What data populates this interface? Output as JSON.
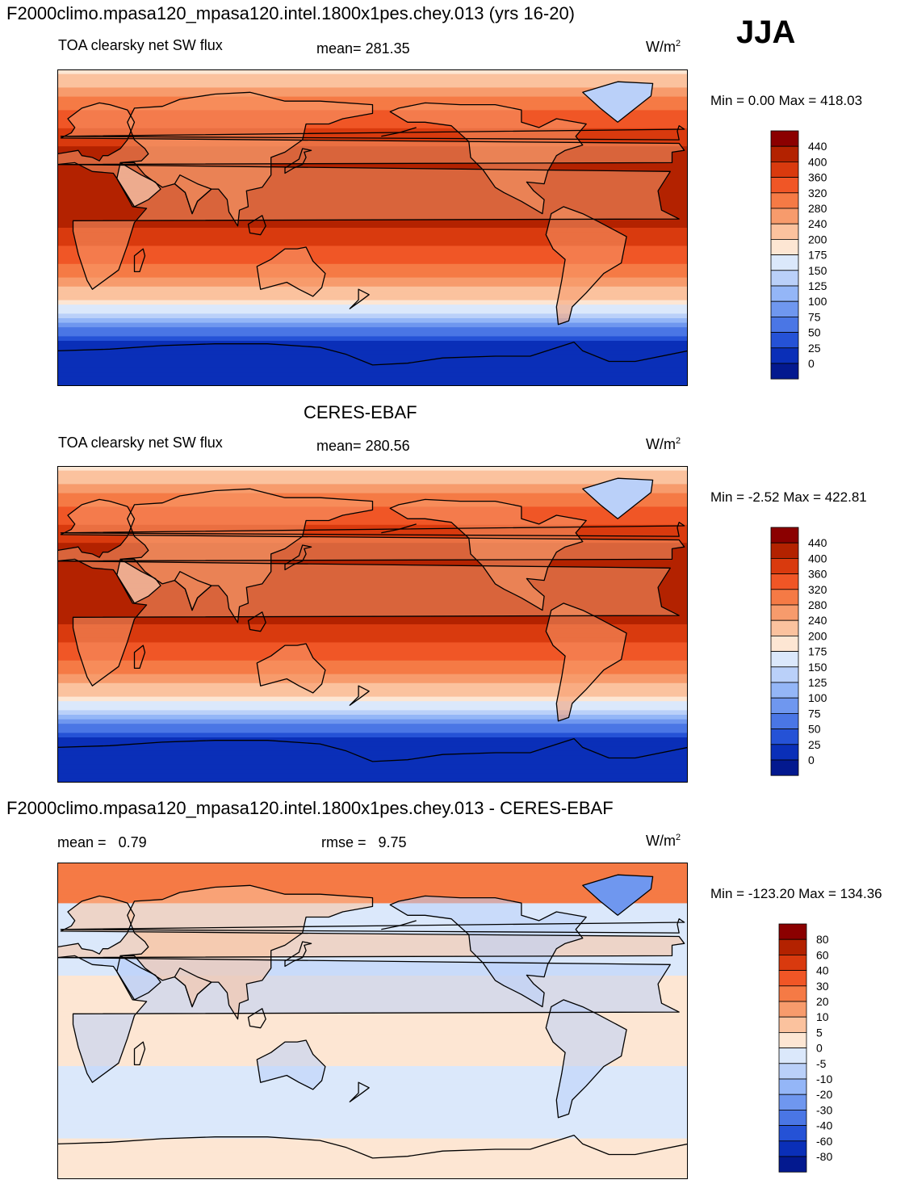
{
  "run_title": "F2000climo.mpasa120_mpasa120.intel.1800x1pes.chey.013 (yrs 16-20)",
  "season": "JJA",
  "panels": [
    {
      "id": "model",
      "heading": "",
      "variable": "TOA clearsky net SW flux",
      "stat_label": "mean=",
      "stat_value": "281.35",
      "stat2_label": "",
      "stat2_value": "",
      "units": "W/m",
      "units_sup": "2",
      "minmax": "Min =   0.00 Max = 418.03",
      "colorbar_labels": [
        "440",
        "400",
        "360",
        "320",
        "280",
        "240",
        "200",
        "175",
        "150",
        "125",
        "100",
        "75",
        "50",
        "25",
        "0"
      ],
      "colorbar_colors": [
        "#8b0000",
        "#b32200",
        "#d93a0e",
        "#f05626",
        "#f57a45",
        "#f79b6c",
        "#fbc29e",
        "#fde6d3",
        "#dbe8fb",
        "#bad0f9",
        "#94b6f7",
        "#6f97ef",
        "#4a76e5",
        "#2552d6",
        "#0a2fb8",
        "#03198f"
      ],
      "chart_data": {
        "type": "heatmap",
        "title": "TOA clearsky net SW flux",
        "lon_range": [
          0,
          360
        ],
        "lat_range": [
          -90,
          90
        ],
        "mean": 281.35,
        "min": 0.0,
        "max": 418.03,
        "levels": [
          0,
          25,
          50,
          75,
          100,
          125,
          150,
          175,
          200,
          240,
          280,
          320,
          360,
          400,
          440
        ]
      }
    },
    {
      "id": "obs",
      "heading": "CERES-EBAF",
      "variable": "TOA clearsky net SW flux",
      "stat_label": "mean=",
      "stat_value": "280.56",
      "stat2_label": "",
      "stat2_value": "",
      "units": "W/m",
      "units_sup": "2",
      "minmax": "Min =  -2.52 Max = 422.81",
      "colorbar_labels": [
        "440",
        "400",
        "360",
        "320",
        "280",
        "240",
        "200",
        "175",
        "150",
        "125",
        "100",
        "75",
        "50",
        "25",
        "0"
      ],
      "colorbar_colors": [
        "#8b0000",
        "#b32200",
        "#d93a0e",
        "#f05626",
        "#f57a45",
        "#f79b6c",
        "#fbc29e",
        "#fde6d3",
        "#dbe8fb",
        "#bad0f9",
        "#94b6f7",
        "#6f97ef",
        "#4a76e5",
        "#2552d6",
        "#0a2fb8",
        "#03198f"
      ],
      "chart_data": {
        "type": "heatmap",
        "title": "TOA clearsky net SW flux",
        "lon_range": [
          0,
          360
        ],
        "lat_range": [
          -90,
          90
        ],
        "mean": 280.56,
        "min": -2.52,
        "max": 422.81,
        "levels": [
          0,
          25,
          50,
          75,
          100,
          125,
          150,
          175,
          200,
          240,
          280,
          320,
          360,
          400,
          440
        ]
      }
    },
    {
      "id": "diff",
      "heading": "F2000climo.mpasa120_mpasa120.intel.1800x1pes.chey.013 - CERES-EBAF",
      "variable": "",
      "stat_label": "mean =",
      "stat_value": "0.79",
      "stat2_label": "rmse =",
      "stat2_value": "9.75",
      "units": "W/m",
      "units_sup": "2",
      "minmax": "Min = -123.20 Max = 134.36",
      "colorbar_labels": [
        "80",
        "60",
        "40",
        "30",
        "20",
        "10",
        "5",
        "0",
        "-5",
        "-10",
        "-20",
        "-30",
        "-40",
        "-60",
        "-80"
      ],
      "colorbar_colors": [
        "#8b0000",
        "#b32200",
        "#d93a0e",
        "#f05626",
        "#f57a45",
        "#f79b6c",
        "#fbc29e",
        "#fde6d3",
        "#dbe8fb",
        "#bad0f9",
        "#94b6f7",
        "#6f97ef",
        "#4a76e5",
        "#2552d6",
        "#0a2fb8",
        "#03198f"
      ],
      "chart_data": {
        "type": "heatmap",
        "title": "",
        "lon_range": [
          0,
          360
        ],
        "lat_range": [
          -90,
          90
        ],
        "mean": 0.79,
        "rmse": 9.75,
        "min": -123.2,
        "max": 134.36,
        "levels": [
          -80,
          -60,
          -40,
          -30,
          -20,
          -10,
          -5,
          0,
          5,
          10,
          20,
          30,
          40,
          60,
          80
        ]
      }
    }
  ]
}
